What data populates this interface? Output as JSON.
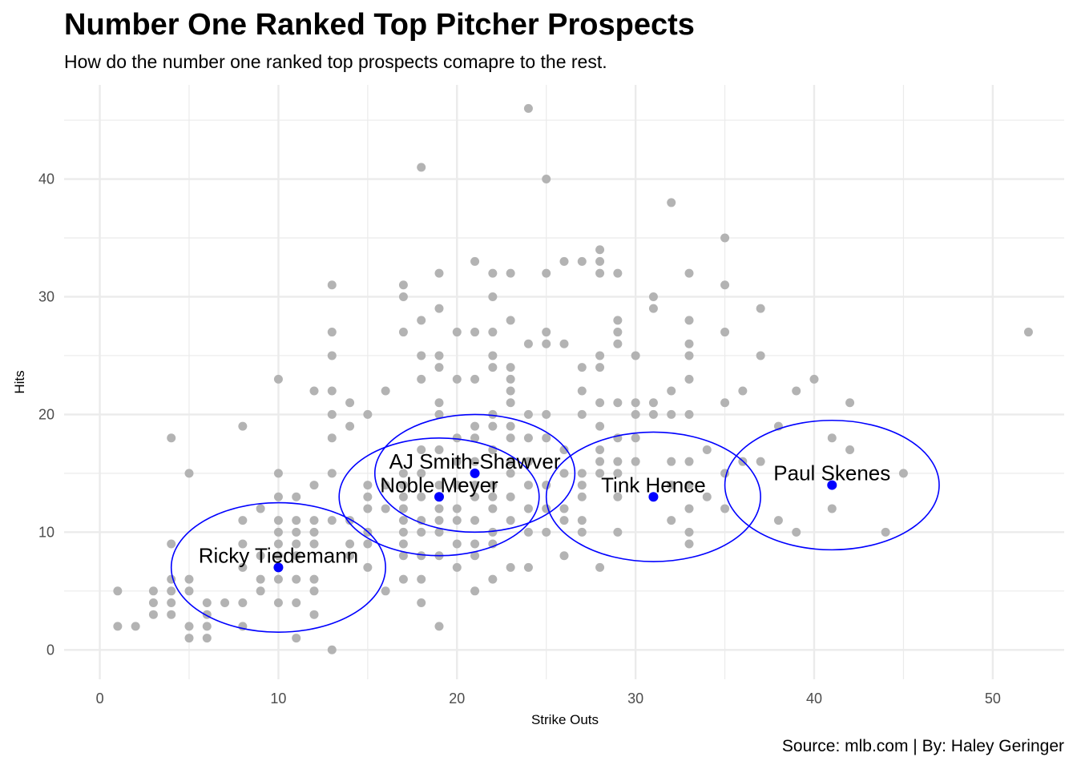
{
  "title": "Number One Ranked Top Pitcher Prospects",
  "subtitle": "How do the number one ranked top prospects comapre to the rest.",
  "caption": "Source: mlb.com | By: Haley Geringer",
  "colors": {
    "background_points": "#b3b3b3",
    "highlight": "#0000ff",
    "grid": "#ebebeb"
  },
  "chart_data": {
    "type": "scatter",
    "xlabel": "Strike Outs",
    "ylabel": "Hits",
    "xlim": [
      -2,
      54
    ],
    "ylim": [
      -2.5,
      48
    ],
    "x_ticks": [
      0,
      10,
      20,
      30,
      40,
      50
    ],
    "y_ticks": [
      0,
      10,
      20,
      30,
      40
    ],
    "grid": true,
    "series": [
      {
        "points": [
          [
            1,
            5
          ],
          [
            1,
            2
          ],
          [
            2,
            2
          ],
          [
            3,
            5
          ],
          [
            3,
            4
          ],
          [
            3,
            3
          ],
          [
            4,
            18
          ],
          [
            4,
            9
          ],
          [
            4,
            6
          ],
          [
            4,
            5
          ],
          [
            4,
            4
          ],
          [
            4,
            3
          ],
          [
            5,
            15
          ],
          [
            5,
            6
          ],
          [
            5,
            5
          ],
          [
            5,
            2
          ],
          [
            5,
            1
          ],
          [
            6,
            4
          ],
          [
            6,
            3
          ],
          [
            6,
            2
          ],
          [
            6,
            1
          ],
          [
            7,
            4
          ],
          [
            8,
            19
          ],
          [
            8,
            11
          ],
          [
            8,
            9
          ],
          [
            8,
            7
          ],
          [
            8,
            4
          ],
          [
            8,
            2
          ],
          [
            9,
            12
          ],
          [
            9,
            8
          ],
          [
            9,
            6
          ],
          [
            9,
            5
          ],
          [
            10,
            23
          ],
          [
            10,
            15
          ],
          [
            10,
            13
          ],
          [
            10,
            11
          ],
          [
            10,
            10
          ],
          [
            10,
            9
          ],
          [
            10,
            8
          ],
          [
            10,
            6
          ],
          [
            10,
            4
          ],
          [
            11,
            13
          ],
          [
            11,
            11
          ],
          [
            11,
            10
          ],
          [
            11,
            9
          ],
          [
            11,
            8
          ],
          [
            11,
            6
          ],
          [
            11,
            4
          ],
          [
            11,
            1
          ],
          [
            12,
            22
          ],
          [
            12,
            14
          ],
          [
            12,
            11
          ],
          [
            12,
            10
          ],
          [
            12,
            9
          ],
          [
            12,
            6
          ],
          [
            12,
            5
          ],
          [
            12,
            3
          ],
          [
            13,
            31
          ],
          [
            13,
            27
          ],
          [
            13,
            25
          ],
          [
            13,
            22
          ],
          [
            13,
            20
          ],
          [
            13,
            18
          ],
          [
            13,
            15
          ],
          [
            13,
            11
          ],
          [
            13,
            0
          ],
          [
            14,
            21
          ],
          [
            14,
            19
          ],
          [
            14,
            11
          ],
          [
            14,
            9
          ],
          [
            14,
            8
          ],
          [
            15,
            20
          ],
          [
            15,
            14
          ],
          [
            15,
            13
          ],
          [
            15,
            12
          ],
          [
            15,
            10
          ],
          [
            15,
            9
          ],
          [
            15,
            7
          ],
          [
            16,
            22
          ],
          [
            16,
            14
          ],
          [
            16,
            12
          ],
          [
            16,
            5
          ],
          [
            17,
            31
          ],
          [
            17,
            30
          ],
          [
            17,
            27
          ],
          [
            17,
            15
          ],
          [
            17,
            14
          ],
          [
            17,
            13
          ],
          [
            17,
            12
          ],
          [
            17,
            11
          ],
          [
            17,
            10
          ],
          [
            17,
            9
          ],
          [
            17,
            8
          ],
          [
            17,
            6
          ],
          [
            18,
            41
          ],
          [
            18,
            28
          ],
          [
            18,
            25
          ],
          [
            18,
            23
          ],
          [
            18,
            17
          ],
          [
            18,
            15
          ],
          [
            18,
            13
          ],
          [
            18,
            11
          ],
          [
            18,
            10
          ],
          [
            18,
            8
          ],
          [
            18,
            6
          ],
          [
            18,
            4
          ],
          [
            19,
            32
          ],
          [
            19,
            29
          ],
          [
            19,
            25
          ],
          [
            19,
            24
          ],
          [
            19,
            21
          ],
          [
            19,
            20
          ],
          [
            19,
            17
          ],
          [
            19,
            14
          ],
          [
            19,
            12
          ],
          [
            19,
            11
          ],
          [
            19,
            10
          ],
          [
            19,
            8
          ],
          [
            19,
            2
          ],
          [
            20,
            27
          ],
          [
            20,
            23
          ],
          [
            20,
            18
          ],
          [
            20,
            16
          ],
          [
            20,
            14
          ],
          [
            20,
            12
          ],
          [
            20,
            11
          ],
          [
            20,
            9
          ],
          [
            20,
            7
          ],
          [
            21,
            33
          ],
          [
            21,
            27
          ],
          [
            21,
            23
          ],
          [
            21,
            19
          ],
          [
            21,
            18
          ],
          [
            21,
            16
          ],
          [
            21,
            14
          ],
          [
            21,
            13
          ],
          [
            21,
            11
          ],
          [
            21,
            9
          ],
          [
            21,
            8
          ],
          [
            21,
            5
          ],
          [
            22,
            32
          ],
          [
            22,
            30
          ],
          [
            22,
            27
          ],
          [
            22,
            25
          ],
          [
            22,
            24
          ],
          [
            22,
            20
          ],
          [
            22,
            19
          ],
          [
            22,
            17
          ],
          [
            22,
            14
          ],
          [
            22,
            13
          ],
          [
            22,
            12
          ],
          [
            22,
            10
          ],
          [
            22,
            9
          ],
          [
            22,
            6
          ],
          [
            23,
            32
          ],
          [
            23,
            28
          ],
          [
            23,
            24
          ],
          [
            23,
            23
          ],
          [
            23,
            22
          ],
          [
            23,
            21
          ],
          [
            23,
            19
          ],
          [
            23,
            18
          ],
          [
            23,
            16
          ],
          [
            23,
            15
          ],
          [
            23,
            13
          ],
          [
            23,
            11
          ],
          [
            23,
            7
          ],
          [
            24,
            46
          ],
          [
            24,
            26
          ],
          [
            24,
            20
          ],
          [
            24,
            18
          ],
          [
            24,
            16
          ],
          [
            24,
            14
          ],
          [
            24,
            12
          ],
          [
            24,
            10
          ],
          [
            24,
            7
          ],
          [
            25,
            40
          ],
          [
            25,
            32
          ],
          [
            25,
            27
          ],
          [
            25,
            26
          ],
          [
            25,
            20
          ],
          [
            25,
            18
          ],
          [
            25,
            14
          ],
          [
            25,
            12
          ],
          [
            25,
            10
          ],
          [
            26,
            33
          ],
          [
            26,
            26
          ],
          [
            26,
            17
          ],
          [
            26,
            15
          ],
          [
            26,
            12
          ],
          [
            26,
            11
          ],
          [
            26,
            8
          ],
          [
            27,
            33
          ],
          [
            27,
            24
          ],
          [
            27,
            22
          ],
          [
            27,
            20
          ],
          [
            27,
            15
          ],
          [
            27,
            14
          ],
          [
            27,
            13
          ],
          [
            27,
            11
          ],
          [
            27,
            10
          ],
          [
            28,
            34
          ],
          [
            28,
            33
          ],
          [
            28,
            32
          ],
          [
            28,
            25
          ],
          [
            28,
            24
          ],
          [
            28,
            21
          ],
          [
            28,
            19
          ],
          [
            28,
            17
          ],
          [
            28,
            16
          ],
          [
            28,
            15
          ],
          [
            28,
            7
          ],
          [
            29,
            32
          ],
          [
            29,
            28
          ],
          [
            29,
            27
          ],
          [
            29,
            26
          ],
          [
            29,
            21
          ],
          [
            29,
            18
          ],
          [
            29,
            16
          ],
          [
            29,
            15
          ],
          [
            29,
            13
          ],
          [
            29,
            10
          ],
          [
            30,
            25
          ],
          [
            30,
            21
          ],
          [
            30,
            20
          ],
          [
            30,
            18
          ],
          [
            30,
            16
          ],
          [
            31,
            30
          ],
          [
            31,
            29
          ],
          [
            31,
            21
          ],
          [
            31,
            20
          ],
          [
            32,
            38
          ],
          [
            32,
            22
          ],
          [
            32,
            20
          ],
          [
            32,
            16
          ],
          [
            32,
            14
          ],
          [
            32,
            11
          ],
          [
            33,
            32
          ],
          [
            33,
            28
          ],
          [
            33,
            26
          ],
          [
            33,
            25
          ],
          [
            33,
            23
          ],
          [
            33,
            20
          ],
          [
            33,
            16
          ],
          [
            33,
            14
          ],
          [
            33,
            12
          ],
          [
            33,
            10
          ],
          [
            33,
            9
          ],
          [
            34,
            17
          ],
          [
            34,
            13
          ],
          [
            35,
            35
          ],
          [
            35,
            31
          ],
          [
            35,
            27
          ],
          [
            35,
            21
          ],
          [
            35,
            15
          ],
          [
            35,
            12
          ],
          [
            36,
            22
          ],
          [
            36,
            16
          ],
          [
            37,
            29
          ],
          [
            37,
            25
          ],
          [
            37,
            16
          ],
          [
            38,
            19
          ],
          [
            38,
            11
          ],
          [
            39,
            22
          ],
          [
            39,
            10
          ],
          [
            40,
            23
          ],
          [
            41,
            18
          ],
          [
            41,
            12
          ],
          [
            42,
            21
          ],
          [
            42,
            17
          ],
          [
            44,
            10
          ],
          [
            45,
            15
          ],
          [
            52,
            27
          ]
        ]
      },
      {
        "highlight": true,
        "points": [
          {
            "name": "Ricky Tiedemann",
            "x": 10,
            "y": 7
          },
          {
            "name": "Noble Meyer",
            "x": 19,
            "y": 13
          },
          {
            "name": "AJ Smith-Shawver",
            "x": 21,
            "y": 15
          },
          {
            "name": "Tink Hence",
            "x": 31,
            "y": 13
          },
          {
            "name": "Paul Skenes",
            "x": 41,
            "y": 14
          }
        ],
        "ellipses": [
          {
            "x": 10,
            "y": 7,
            "rx": 6,
            "ry": 5.5
          },
          {
            "x": 19,
            "y": 13,
            "rx": 5.6,
            "ry": 5
          },
          {
            "x": 21,
            "y": 15,
            "rx": 5.6,
            "ry": 5
          },
          {
            "x": 31,
            "y": 13,
            "rx": 6,
            "ry": 5.5
          },
          {
            "x": 41,
            "y": 14,
            "rx": 6,
            "ry": 5.5
          }
        ]
      }
    ]
  }
}
